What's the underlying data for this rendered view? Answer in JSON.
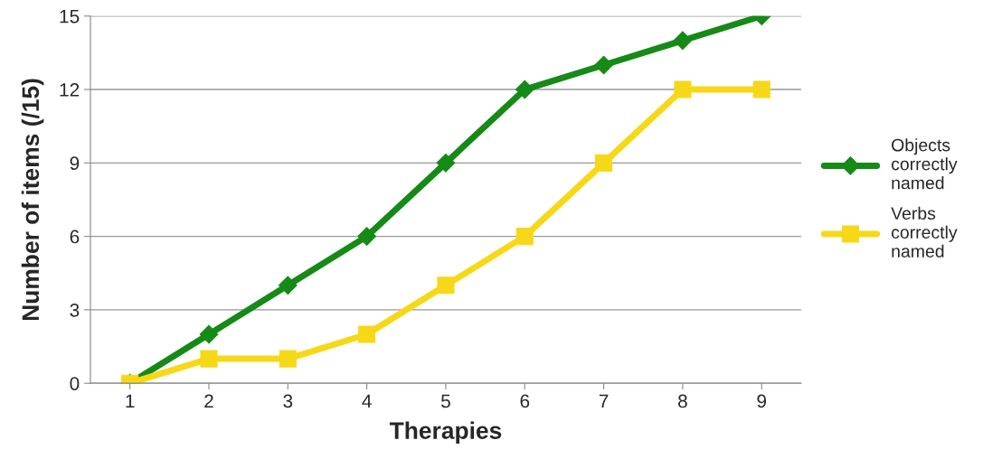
{
  "chart_data": {
    "type": "line",
    "xlabel": "Therapies",
    "ylabel": "Number of items (/15)",
    "categories": [
      "1",
      "2",
      "3",
      "4",
      "5",
      "6",
      "7",
      "8",
      "9"
    ],
    "series": [
      {
        "name": "Objects\ncorrectly\nnamed",
        "color": "#168a16",
        "marker": "diamond",
        "values": [
          0,
          2,
          4,
          6,
          9,
          12,
          13,
          14,
          15
        ]
      },
      {
        "name": "Verbs\ncorrectly\nnamed",
        "color": "#f7d818",
        "marker": "square",
        "values": [
          0,
          1,
          1,
          2,
          4,
          6,
          9,
          12,
          12
        ]
      }
    ],
    "ylim": [
      0,
      15
    ],
    "yticks": [
      0,
      3,
      6,
      9,
      12,
      15
    ],
    "grid": "y",
    "legend": "right",
    "line_style": "solid"
  }
}
